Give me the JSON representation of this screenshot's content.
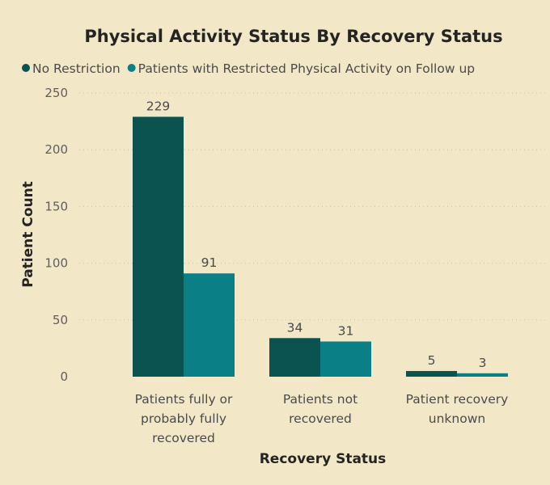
{
  "chart_data": {
    "type": "bar",
    "title": "Physical Activity Status By Recovery Status",
    "xlabel": "Recovery Status",
    "ylabel": "Patient Count",
    "ylim": [
      0,
      250
    ],
    "yticks": [
      0,
      50,
      100,
      150,
      200,
      250
    ],
    "grid": true,
    "legend_position": "top-left",
    "categories": [
      [
        "Patients fully or",
        "probably fully",
        "recovered"
      ],
      [
        "Patients not",
        "recovered"
      ],
      [
        "Patient recovery",
        "unknown"
      ]
    ],
    "series": [
      {
        "name": "No Restriction",
        "color": "#0b5351",
        "values": [
          229,
          34,
          5
        ]
      },
      {
        "name": "Patients with Restricted Physical Activity on Follow up",
        "color": "#0b7f86",
        "values": [
          91,
          31,
          3
        ]
      }
    ]
  }
}
